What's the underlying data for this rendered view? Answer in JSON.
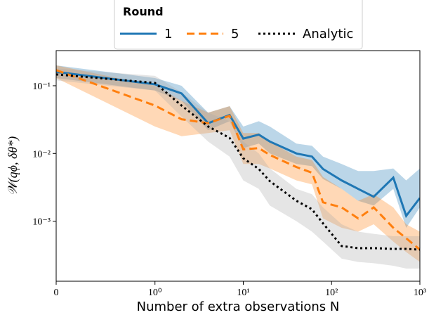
{
  "chart_data": {
    "type": "line",
    "xlabel": "Number of extra observations N",
    "ylabel": "𝒲(qϕ, δθ*)",
    "legend_title": "Round",
    "legend": "upper center outside",
    "xscale": "symlog",
    "yscale": "log",
    "xlim": [
      0,
      1000
    ],
    "ylim": [
      0.00013,
      0.33
    ],
    "xticks": [
      0,
      {
        "value": 1,
        "label": "10⁰"
      },
      {
        "value": 10,
        "label": "10¹"
      },
      {
        "value": 100,
        "label": "10²"
      },
      {
        "value": 1000,
        "label": "10³"
      }
    ],
    "yticks": [
      {
        "value": 0.001,
        "label": "10⁻³"
      },
      {
        "value": 0.01,
        "label": "10⁻²"
      },
      {
        "value": 0.1,
        "label": "10⁻¹"
      }
    ],
    "x": [
      0,
      1,
      2,
      4,
      7,
      10,
      15,
      20,
      40,
      60,
      80,
      130,
      200,
      300,
      500,
      700,
      1000
    ],
    "series": [
      {
        "name": "1",
        "color": "#1f77b4",
        "linestyle": "solid",
        "values": [
          0.16,
          0.105,
          0.077,
          0.028,
          0.037,
          0.0166,
          0.019,
          0.015,
          0.01,
          0.009,
          0.0059,
          0.004,
          0.003,
          0.0023,
          0.0044,
          0.0012,
          0.0022
        ],
        "upper": [
          0.2,
          0.13,
          0.1,
          0.04,
          0.05,
          0.025,
          0.03,
          0.025,
          0.014,
          0.013,
          0.009,
          0.007,
          0.0055,
          0.0055,
          0.006,
          0.004,
          0.006
        ],
        "lower": [
          0.13,
          0.085,
          0.06,
          0.022,
          0.03,
          0.012,
          0.014,
          0.01,
          0.007,
          0.0065,
          0.0042,
          0.003,
          0.002,
          0.0017,
          0.003,
          0.0008,
          0.0016
        ]
      },
      {
        "name": "5",
        "color": "#ff7f0e",
        "linestyle": "dashed",
        "values": [
          0.17,
          0.051,
          0.032,
          0.028,
          0.036,
          0.0115,
          0.012,
          0.0095,
          0.0063,
          0.0052,
          0.0019,
          0.0016,
          0.0011,
          0.0016,
          0.0008,
          0.00056,
          0.00038
        ],
        "upper": [
          0.2,
          0.1,
          0.06,
          0.04,
          0.05,
          0.02,
          0.02,
          0.015,
          0.009,
          0.008,
          0.0045,
          0.003,
          0.002,
          0.0025,
          0.0016,
          0.0009,
          0.0007
        ],
        "lower": [
          0.13,
          0.025,
          0.018,
          0.02,
          0.022,
          0.007,
          0.007,
          0.006,
          0.004,
          0.0035,
          0.0011,
          0.0008,
          0.0007,
          0.0009,
          0.0005,
          0.00035,
          0.00025
        ]
      },
      {
        "name": "Analytic",
        "color": "#000000",
        "band_color": "#aaaaaa",
        "linestyle": "dotted",
        "values": [
          0.147,
          0.11,
          0.051,
          0.025,
          0.017,
          0.0085,
          0.0059,
          0.0039,
          0.002,
          0.0015,
          0.00093,
          0.00043,
          0.0004,
          0.0004,
          0.00039,
          0.00039,
          0.00038
        ],
        "upper": [
          0.18,
          0.14,
          0.08,
          0.04,
          0.03,
          0.015,
          0.01,
          0.006,
          0.003,
          0.0025,
          0.0016,
          0.0009,
          0.0007,
          0.00065,
          0.0006,
          0.0006,
          0.0006
        ],
        "lower": [
          0.12,
          0.085,
          0.035,
          0.015,
          0.009,
          0.004,
          0.003,
          0.0017,
          0.001,
          0.0007,
          0.0005,
          0.00028,
          0.00025,
          0.00024,
          0.00022,
          0.0002,
          0.0002
        ]
      }
    ]
  }
}
